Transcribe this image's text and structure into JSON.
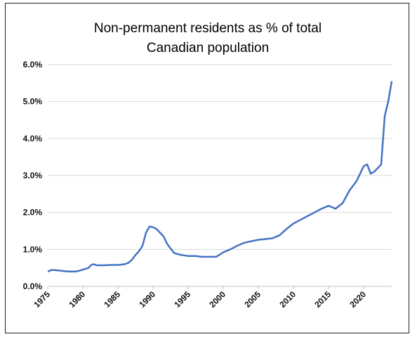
{
  "chart_data": {
    "type": "line",
    "title_line1": "Non-permanent residents as % of total",
    "title_line2": "Canadian population",
    "xlabel": "",
    "ylabel": "",
    "xlim": [
      1975,
      2024
    ],
    "ylim": [
      0,
      6
    ],
    "y_ticks": [
      "0.0%",
      "1.0%",
      "2.0%",
      "3.0%",
      "4.0%",
      "5.0%",
      "6.0%"
    ],
    "x_ticks": [
      "1975",
      "1980",
      "1985",
      "1990",
      "1995",
      "2000",
      "2005",
      "2010",
      "2015",
      "2020"
    ],
    "grid": "horizontal",
    "legend": "none",
    "series": [
      {
        "color": "#4472c4",
        "x": [
          1975,
          1975.5,
          1976,
          1977,
          1978,
          1979,
          1980,
          1980.8,
          1981.2,
          1981.5,
          1982,
          1983,
          1984,
          1985,
          1986,
          1986.5,
          1987,
          1987.5,
          1988,
          1988.5,
          1989,
          1989.5,
          1990,
          1990.5,
          1991,
          1991.5,
          1992,
          1993,
          1994,
          1995,
          1996,
          1997,
          1998,
          1999,
          2000,
          2001,
          2002,
          2003,
          2004,
          2005,
          2006,
          2007,
          2008,
          2009,
          2010,
          2011,
          2012,
          2013,
          2014,
          2015,
          2016,
          2017,
          2018,
          2019,
          2020,
          2020.5,
          2021,
          2021.5,
          2022,
          2022.5,
          2023,
          2023.5,
          2024
        ],
        "values": [
          0.4,
          0.44,
          0.44,
          0.42,
          0.4,
          0.4,
          0.45,
          0.5,
          0.58,
          0.6,
          0.57,
          0.57,
          0.58,
          0.58,
          0.6,
          0.64,
          0.72,
          0.85,
          0.95,
          1.1,
          1.45,
          1.62,
          1.6,
          1.55,
          1.45,
          1.35,
          1.15,
          0.9,
          0.85,
          0.82,
          0.82,
          0.8,
          0.8,
          0.8,
          0.92,
          1.0,
          1.1,
          1.18,
          1.22,
          1.26,
          1.28,
          1.3,
          1.38,
          1.55,
          1.7,
          1.8,
          1.9,
          2.0,
          2.1,
          2.18,
          2.1,
          2.25,
          2.6,
          2.85,
          3.25,
          3.3,
          3.05,
          3.1,
          3.2,
          3.3,
          4.6,
          5.0,
          5.55
        ]
      }
    ]
  }
}
